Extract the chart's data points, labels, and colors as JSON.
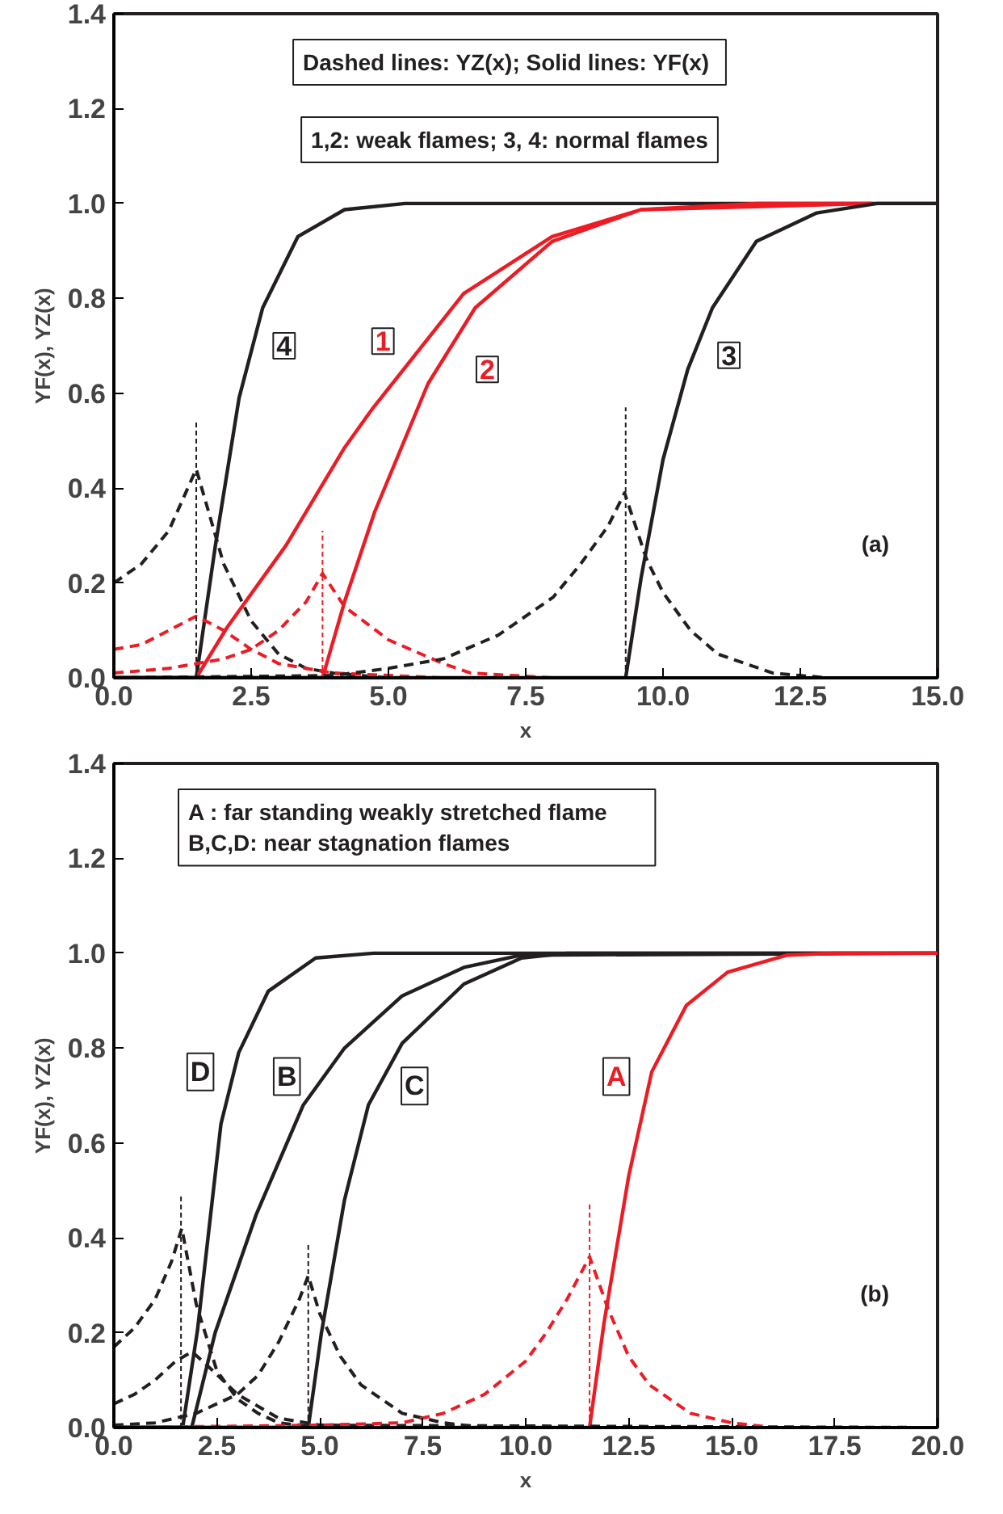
{
  "chart_data": [
    {
      "type": "line",
      "xlabel": "x",
      "ylabel": "YF(x), YZ(x)",
      "grid": false,
      "xlim": [
        0,
        15
      ],
      "ylim": [
        0,
        1.4
      ],
      "xticks": [
        {
          "value": 0,
          "label": "0.0"
        },
        {
          "value": 2.5,
          "label": "2.5"
        },
        {
          "value": 5,
          "label": "5.0"
        },
        {
          "value": 7.5,
          "label": "7.5"
        },
        {
          "value": 10,
          "label": "10.0"
        },
        {
          "value": 12.5,
          "label": "12.5"
        },
        {
          "value": 15,
          "label": "15.0"
        }
      ],
      "yticks": [
        {
          "value": 0,
          "label": "0.0"
        },
        {
          "value": 0.2,
          "label": "0.2"
        },
        {
          "value": 0.4,
          "label": "0.4"
        },
        {
          "value": 0.6,
          "label": "0.6"
        },
        {
          "value": 0.8,
          "label": "0.8"
        },
        {
          "value": 1.0,
          "label": "1.0"
        },
        {
          "value": 1.2,
          "label": "1.2"
        },
        {
          "value": 1.4,
          "label": "1.4"
        }
      ],
      "series": [
        {
          "color": "#231f20",
          "line_style": "solid",
          "x": [
            0,
            1.5,
            1.85,
            2.28,
            2.71,
            3.35,
            4.2,
            5.3,
            15
          ],
          "values": [
            0,
            0,
            0.28,
            0.59,
            0.78,
            0.93,
            0.987,
            1.0,
            1.0
          ]
        },
        {
          "color": "#ed1c24",
          "line_style": "solid",
          "x": [
            0,
            1.5,
            2.06,
            3.14,
            4.2,
            4.7,
            6.37,
            7.98,
            9.6,
            11.7,
            13.8
          ],
          "values": [
            0,
            0,
            0.106,
            0.28,
            0.485,
            0.566,
            0.81,
            0.93,
            0.987,
            1.0,
            1.0
          ]
        },
        {
          "color": "#ed1c24",
          "line_style": "solid",
          "x": [
            0,
            3.8,
            4.2,
            4.75,
            5.72,
            6.58,
            7.98,
            9.6,
            13.8
          ],
          "values": [
            0,
            0,
            0.16,
            0.35,
            0.62,
            0.78,
            0.92,
            0.987,
            1.0
          ]
        },
        {
          "color": "#231f20",
          "line_style": "solid",
          "x": [
            0,
            9.32,
            9.6,
            10.0,
            10.45,
            10.9,
            11.7,
            12.8,
            13.9,
            15
          ],
          "values": [
            0,
            0,
            0.21,
            0.46,
            0.65,
            0.78,
            0.92,
            0.98,
            1.0,
            1.0
          ]
        },
        {
          "color": "#231f20",
          "line_style": "dashed",
          "x": [
            0,
            0.5,
            1.0,
            1.5,
            2.0,
            2.5,
            3.0,
            3.5,
            4.0,
            5.0,
            15
          ],
          "values": [
            0.2,
            0.24,
            0.31,
            0.44,
            0.24,
            0.12,
            0.05,
            0.02,
            0.01,
            0,
            0
          ]
        },
        {
          "color": "#ed1c24",
          "line_style": "dashed",
          "x": [
            0,
            0.5,
            1.0,
            1.5,
            2.0,
            2.5,
            3.0,
            4.0,
            6.0,
            15
          ],
          "values": [
            0.06,
            0.07,
            0.1,
            0.13,
            0.1,
            0.06,
            0.03,
            0.01,
            0,
            0
          ]
        },
        {
          "color": "#ed1c24",
          "line_style": "dashed",
          "x": [
            0,
            1.0,
            2.0,
            2.5,
            3.0,
            3.5,
            3.8,
            4.2,
            5.0,
            6.0,
            6.5,
            8.0,
            15
          ],
          "values": [
            0.01,
            0.02,
            0.04,
            0.06,
            0.1,
            0.16,
            0.22,
            0.15,
            0.08,
            0.03,
            0.01,
            0,
            0
          ]
        },
        {
          "color": "#231f20",
          "line_style": "dashed",
          "x": [
            0,
            4,
            5,
            6,
            7,
            8,
            8.5,
            9,
            9.3,
            9.7,
            10,
            10.5,
            11,
            12,
            13,
            15
          ],
          "values": [
            0,
            0.005,
            0.02,
            0.04,
            0.09,
            0.17,
            0.24,
            0.32,
            0.39,
            0.25,
            0.18,
            0.1,
            0.05,
            0.01,
            0,
            0
          ]
        },
        {
          "color": "#231f20",
          "line_style": "dotted",
          "x": [
            1.5,
            1.5
          ],
          "values": [
            0,
            0.54
          ]
        },
        {
          "color": "#ed1c24",
          "line_style": "dotted",
          "x": [
            3.8,
            3.8
          ],
          "values": [
            0,
            0.31
          ]
        },
        {
          "color": "#231f20",
          "line_style": "dotted",
          "x": [
            9.32,
            9.32
          ],
          "values": [
            0,
            0.57
          ]
        }
      ],
      "annotations": [
        {
          "text": "4",
          "x": 3.1,
          "y": 0.7
        },
        {
          "text": "1",
          "x": 4.9,
          "y": 0.71
        },
        {
          "text": "2",
          "x": 6.8,
          "y": 0.65
        },
        {
          "text": "3",
          "x": 11.2,
          "y": 0.68
        },
        "Dashed lines: YZ(x);  Solid lines: YF(x)",
        "1,2: weak flames; 3, 4: normal flames",
        "(a)"
      ]
    },
    {
      "type": "line",
      "xlabel": "x",
      "ylabel": "YF(x), YZ(x)",
      "grid": false,
      "xlim": [
        0,
        20
      ],
      "ylim": [
        0,
        1.4
      ],
      "xticks": [
        {
          "value": 0,
          "label": "0.0"
        },
        {
          "value": 2.5,
          "label": "2.5"
        },
        {
          "value": 5,
          "label": "5.0"
        },
        {
          "value": 7.5,
          "label": "7.5"
        },
        {
          "value": 10,
          "label": "10.0"
        },
        {
          "value": 12.5,
          "label": "12.5"
        },
        {
          "value": 15,
          "label": "15.0"
        },
        {
          "value": 17.5,
          "label": "17.5"
        },
        {
          "value": 20,
          "label": "20.0"
        }
      ],
      "yticks": [
        {
          "value": 0,
          "label": "0.0"
        },
        {
          "value": 0.2,
          "label": "0.2"
        },
        {
          "value": 0.4,
          "label": "0.4"
        },
        {
          "value": 0.6,
          "label": "0.6"
        },
        {
          "value": 0.8,
          "label": "0.8"
        },
        {
          "value": 1.0,
          "label": "1.0"
        },
        {
          "value": 1.2,
          "label": "1.2"
        },
        {
          "value": 1.4,
          "label": "1.4"
        }
      ],
      "series": [
        {
          "color": "#231f20",
          "line_style": "solid",
          "x": [
            0,
            1.67,
            2.03,
            2.6,
            3.03,
            3.75,
            4.9,
            6.3,
            20
          ],
          "values": [
            0,
            0,
            0.205,
            0.64,
            0.79,
            0.92,
            0.99,
            1.0,
            1.0
          ]
        },
        {
          "color": "#231f20",
          "line_style": "solid",
          "x": [
            0,
            1.89,
            2.46,
            3.46,
            4.6,
            5.6,
            7.0,
            8.5,
            9.9,
            20
          ],
          "values": [
            0,
            0,
            0.2,
            0.45,
            0.68,
            0.8,
            0.91,
            0.97,
            0.996,
            1.0
          ]
        },
        {
          "color": "#231f20",
          "line_style": "solid",
          "x": [
            0,
            4.72,
            5.04,
            5.6,
            6.18,
            7.0,
            8.5,
            9.9,
            11,
            20
          ],
          "values": [
            0,
            0,
            0.2,
            0.48,
            0.68,
            0.81,
            0.935,
            0.99,
            1.0,
            1.0
          ]
        },
        {
          "color": "#ed1c24",
          "line_style": "solid",
          "x": [
            0,
            11.55,
            11.9,
            12.5,
            13.06,
            13.9,
            14.9,
            16.35,
            17.5,
            20
          ],
          "values": [
            0,
            0,
            0.22,
            0.53,
            0.75,
            0.89,
            0.96,
            0.996,
            1.0,
            1.0
          ]
        },
        {
          "color": "#231f20",
          "line_style": "dashed",
          "x": [
            0,
            0.5,
            1.0,
            1.4,
            1.65,
            2.0,
            2.5,
            3.0,
            3.5,
            4.0,
            5.0,
            20
          ],
          "values": [
            0.17,
            0.21,
            0.27,
            0.35,
            0.42,
            0.26,
            0.12,
            0.06,
            0.03,
            0.01,
            0,
            0
          ]
        },
        {
          "color": "#231f20",
          "line_style": "dashed",
          "x": [
            0,
            0.5,
            1.0,
            1.5,
            1.9,
            2.4,
            3.0,
            4.0,
            5.0,
            20
          ],
          "values": [
            0.05,
            0.07,
            0.1,
            0.14,
            0.16,
            0.12,
            0.07,
            0.02,
            0.005,
            0
          ]
        },
        {
          "color": "#231f20",
          "line_style": "dashed",
          "x": [
            0,
            1,
            2,
            3,
            3.5,
            4,
            4.5,
            4.72,
            5.0,
            5.5,
            6,
            7,
            8,
            9,
            20
          ],
          "values": [
            0.005,
            0.01,
            0.03,
            0.07,
            0.11,
            0.18,
            0.27,
            0.32,
            0.24,
            0.15,
            0.09,
            0.03,
            0.01,
            0,
            0
          ]
        },
        {
          "color": "#ed1c24",
          "line_style": "dashed",
          "x": [
            0,
            5,
            7,
            8,
            9,
            10,
            10.5,
            11,
            11.55,
            12,
            12.5,
            13,
            14,
            15,
            16,
            20
          ],
          "values": [
            0,
            0.005,
            0.01,
            0.03,
            0.07,
            0.14,
            0.2,
            0.27,
            0.36,
            0.25,
            0.15,
            0.09,
            0.03,
            0.01,
            0,
            0
          ]
        },
        {
          "color": "#231f20",
          "line_style": "dotted",
          "x": [
            1.63,
            1.63
          ],
          "values": [
            0,
            0.49
          ]
        },
        {
          "color": "#231f20",
          "line_style": "dotted",
          "x": [
            4.72,
            4.72
          ],
          "values": [
            0,
            0.39
          ]
        },
        {
          "color": "#ed1c24",
          "line_style": "dotted",
          "x": [
            11.55,
            11.55
          ],
          "values": [
            0,
            0.47
          ]
        }
      ],
      "annotations": [
        {
          "text": "D",
          "x": 2.1,
          "y": 0.75
        },
        {
          "text": "B",
          "x": 4.2,
          "y": 0.74
        },
        {
          "text": "C",
          "x": 7.3,
          "y": 0.72
        },
        {
          "text": "A",
          "x": 12.2,
          "y": 0.74
        },
        "A       : far standing weakly stretched flame\nB,C,D: near stagnation flames",
        "(b)"
      ]
    }
  ]
}
